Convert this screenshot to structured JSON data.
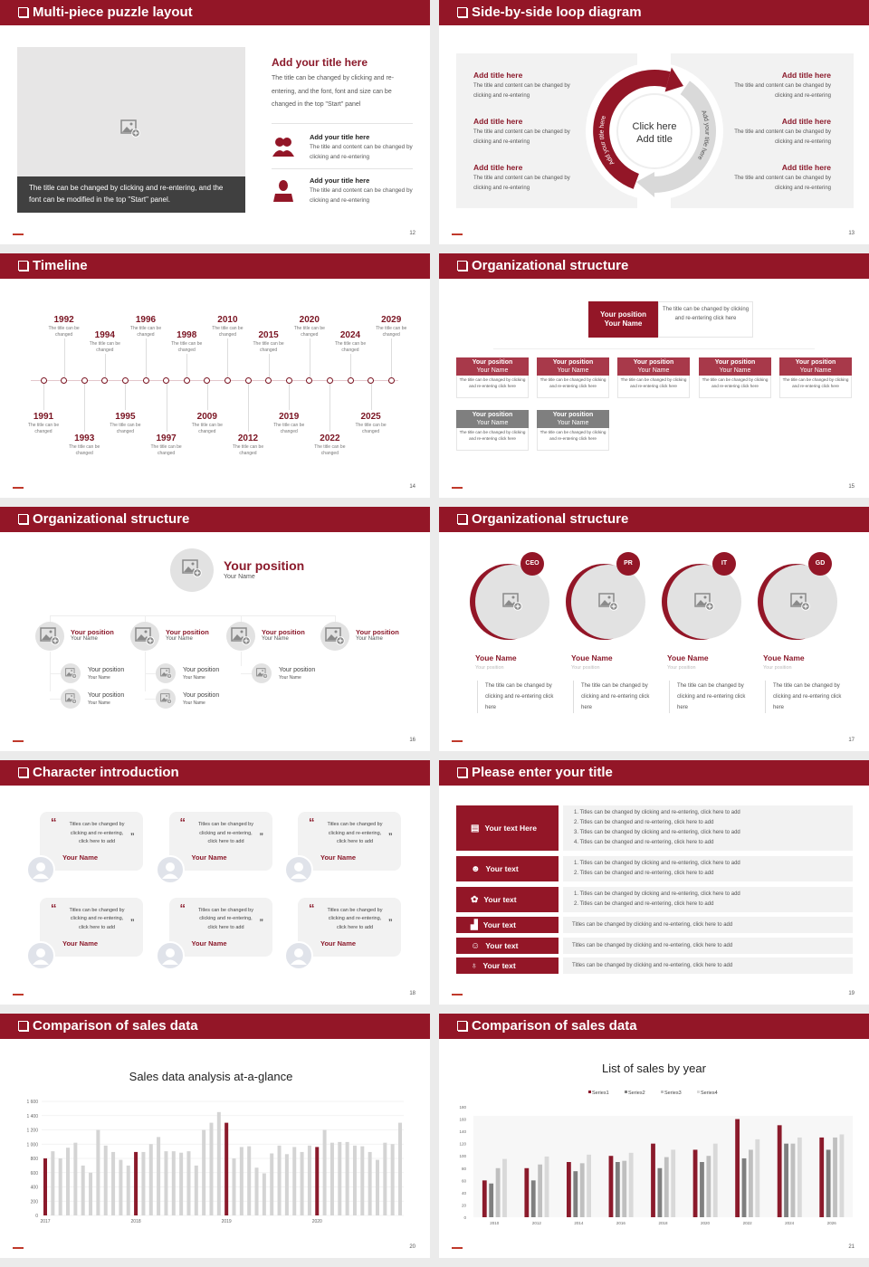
{
  "theme": {
    "accent": "#931627",
    "gray": "#7f7f7f"
  },
  "puzzle": {
    "title": "Multi-piece puzzle layout",
    "page": "12",
    "caption": "The title can be changed by clicking and re-entering, and the font can be modified in the top \"Start\" panel.",
    "main_title": "Add your title here",
    "main_text": "The title can be changed by clicking and re-entering, and the font, font and size can be changed in the top \"Start\" panel",
    "items": [
      {
        "icon": "users-icon",
        "title": "Add your title here",
        "text": "The title and content can be changed by clicking and re-entering"
      },
      {
        "icon": "user-icon",
        "title": "Add your title here",
        "text": "The title and content can be changed by clicking and re-entering"
      }
    ]
  },
  "loop": {
    "title": "Side-by-side loop diagram",
    "page": "13",
    "center_line1": "Click here",
    "center_line2": "Add title",
    "arc_left": "Add your title here",
    "arc_right": "Add your title here",
    "left": [
      {
        "title": "Add title here",
        "text": "The title and content can be changed by clicking and re-entering"
      },
      {
        "title": "Add title here",
        "text": "The title and content can be changed by clicking and re-entering"
      },
      {
        "title": "Add title here",
        "text": "The title and content can be changed by clicking and re-entering"
      }
    ],
    "right": [
      {
        "title": "Add title here",
        "text": "The title and content can be changed by clicking and re-entering"
      },
      {
        "title": "Add title here",
        "text": "The title and content can be changed by clicking and re-entering"
      },
      {
        "title": "Add title here",
        "text": "The title and content can be changed by clicking and re-entering"
      }
    ]
  },
  "timeline": {
    "title": "Timeline",
    "page": "14",
    "item_text": "The title can be changed",
    "events": [
      {
        "year": "1991",
        "pos": "bottom-near"
      },
      {
        "year": "1992",
        "pos": "top-high"
      },
      {
        "year": "1993",
        "pos": "bottom-far"
      },
      {
        "year": "1994",
        "pos": "top-low"
      },
      {
        "year": "1995",
        "pos": "bottom-near"
      },
      {
        "year": "1996",
        "pos": "top-high"
      },
      {
        "year": "1997",
        "pos": "bottom-far"
      },
      {
        "year": "1998",
        "pos": "top-low"
      },
      {
        "year": "2009",
        "pos": "bottom-near"
      },
      {
        "year": "2010",
        "pos": "top-high"
      },
      {
        "year": "2012",
        "pos": "bottom-far"
      },
      {
        "year": "2015",
        "pos": "top-low"
      },
      {
        "year": "2019",
        "pos": "bottom-near"
      },
      {
        "year": "2020",
        "pos": "top-high"
      },
      {
        "year": "2022",
        "pos": "bottom-far"
      },
      {
        "year": "2024",
        "pos": "top-low"
      },
      {
        "year": "2025",
        "pos": "bottom-near"
      },
      {
        "year": "2029",
        "pos": "top-high"
      }
    ]
  },
  "org1": {
    "title": "Organizational structure",
    "page": "15",
    "top": {
      "position": "Your position",
      "name": "Your Name",
      "text": "The title can be changed by clicking and re-entering click here"
    },
    "row1": [
      {
        "position": "Your position",
        "name": "Your Name",
        "text": "The title can be changed by clicking and re-entering click here"
      },
      {
        "position": "Your position",
        "name": "Your Name",
        "text": "The title can be changed by clicking and re-entering click here"
      },
      {
        "position": "Your position",
        "name": "Your Name",
        "text": "The title can be changed by clicking and re-entering click here"
      },
      {
        "position": "Your position",
        "name": "Your Name",
        "text": "The title can be changed by clicking and re-entering click here"
      },
      {
        "position": "Your position",
        "name": "Your Name",
        "text": "The title can be changed by clicking and re-entering click here"
      }
    ],
    "row2": [
      {
        "position": "Your position",
        "name": "Your Name",
        "text": "The title can be changed by clicking and re-entering click here"
      },
      {
        "position": "Your position",
        "name": "Your Name",
        "text": "The title can be changed by clicking and re-entering click here"
      }
    ]
  },
  "org2": {
    "title": "Organizational structure",
    "page": "16",
    "top": {
      "position": "Your position",
      "name": "Your Name"
    },
    "level2": [
      {
        "position": "Your position",
        "name": "Your Name",
        "children": [
          {
            "position": "Your position",
            "name": "Your Name"
          },
          {
            "position": "Your position",
            "name": "Your Name"
          }
        ]
      },
      {
        "position": "Your position",
        "name": "Your Name",
        "children": [
          {
            "position": "Your position",
            "name": "Your Name"
          },
          {
            "position": "Your position",
            "name": "Your Name"
          }
        ]
      },
      {
        "position": "Your position",
        "name": "Your Name",
        "children": [
          {
            "position": "Your position",
            "name": "Your Name"
          }
        ]
      },
      {
        "position": "Your position",
        "name": "Your Name",
        "children": []
      }
    ]
  },
  "org3": {
    "title": "Organizational structure",
    "page": "17",
    "members": [
      {
        "badge": "CEO",
        "name": "Youe Name",
        "position": "Your position",
        "text": "The title can be changed by clicking and re-entering click here"
      },
      {
        "badge": "PR",
        "name": "Youe Name",
        "position": "Your position",
        "text": "The title can be changed by clicking and re-entering click here"
      },
      {
        "badge": "IT",
        "name": "Youe Name",
        "position": "Your position",
        "text": "The title can be changed by clicking and re-entering click here"
      },
      {
        "badge": "GD",
        "name": "Youe Name",
        "position": "Your position",
        "text": "The title can be changed by clicking and re-entering click here"
      }
    ]
  },
  "characters": {
    "title": "Character introduction",
    "page": "18",
    "cards": [
      {
        "quote": "Titles can be changed by clicking and re-entering, click here to add",
        "name": "Your Name"
      },
      {
        "quote": "Titles can be changed by clicking and re-entering, click here to add",
        "name": "Your Name"
      },
      {
        "quote": "Titles can be changed by clicking and re-entering, click here to add",
        "name": "Your Name"
      },
      {
        "quote": "Titles can be changed by clicking and re-entering, click here to add",
        "name": "Your Name"
      },
      {
        "quote": "Titles can be changed by clicking and re-entering, click here to add",
        "name": "Your Name"
      },
      {
        "quote": "Titles can be changed by clicking and re-entering, click here to add",
        "name": "Your Name"
      }
    ]
  },
  "table": {
    "title": "Please enter your title",
    "page": "19",
    "rows": [
      {
        "icon": "presentation-icon",
        "glyph": "▤",
        "label": "Your text Here",
        "lines": [
          "1.   Titles can be changed by clicking and re-entering, click here to add",
          "2.   Titles can be changed and re-entering, click here to add",
          "3.   Titles can be changed by clicking and re-entering, click here to add",
          "4.   Titles can be changed and re-entering, click here to add"
        ]
      },
      {
        "icon": "user-card-icon",
        "glyph": "☻",
        "label": "Your text",
        "lines": [
          "1.   Titles can be changed by clicking and re-entering, click here to add",
          "2.   Titles can be changed and re-entering, click here to add"
        ]
      },
      {
        "icon": "gear-icon",
        "glyph": "✿",
        "label": "Your text",
        "lines": [
          "1.   Titles can be changed by clicking and re-entering, click here to add",
          "2.   Titles can be changed and re-entering, click here to add"
        ]
      },
      {
        "icon": "bar-chart-icon",
        "glyph": "▟",
        "label": "Your text",
        "lines": [
          "Titles can be changed by clicking and re-entering, click here to add"
        ]
      },
      {
        "icon": "team-icon",
        "glyph": "☺",
        "label": "Your text",
        "lines": [
          "Titles can be changed by clicking and re-entering, click here to add"
        ]
      },
      {
        "icon": "money-hand-icon",
        "glyph": "♁",
        "label": "Your text",
        "lines": [
          "Titles can be changed by clicking and re-entering, click here to add"
        ]
      }
    ]
  },
  "sales1": {
    "title": "Comparison of sales data",
    "page": "20"
  },
  "sales2": {
    "title": "Comparison of sales data",
    "page": "21"
  },
  "chart_data": [
    {
      "type": "bar",
      "title": "Sales data analysis at-a-glance",
      "ylim": [
        0,
        1600
      ],
      "yticks": [
        "0",
        "200",
        "400",
        "600",
        "800",
        "1 000",
        "1 200",
        "1 400",
        "1 600"
      ],
      "xtick_labels": [
        "2017",
        "2018",
        "2019",
        "2020"
      ],
      "grid": true,
      "highlight_color": "#8b1a2b",
      "bar_color": "#d4d4d4",
      "highlight_every": 12,
      "values": [
        800,
        900,
        800,
        950,
        1020,
        700,
        600,
        1200,
        980,
        890,
        780,
        700,
        890,
        890,
        1000,
        1100,
        900,
        900,
        880,
        900,
        700,
        1200,
        1300,
        1450,
        1300,
        800,
        960,
        970,
        670,
        590,
        870,
        980,
        860,
        960,
        890,
        980,
        960,
        1200,
        1020,
        1030,
        1030,
        980,
        970,
        890,
        780,
        1020,
        1000,
        1300
      ]
    },
    {
      "type": "bar",
      "title": "List of sales by year",
      "ylim": [
        0,
        180
      ],
      "yticks": [
        "0",
        "20",
        "40",
        "60",
        "80",
        "100",
        "120",
        "140",
        "160",
        "180"
      ],
      "categories": [
        "2010",
        "2012",
        "2014",
        "2016",
        "2018",
        "2020",
        "2022",
        "2024",
        "2026"
      ],
      "legend": "top",
      "series": [
        {
          "name": "Series1",
          "color": "#8b1a2b",
          "values": [
            60,
            80,
            90,
            100,
            120,
            110,
            160,
            150,
            130
          ]
        },
        {
          "name": "Series2",
          "color": "#7f7f7f",
          "values": [
            55,
            60,
            75,
            90,
            80,
            90,
            96,
            120,
            110
          ]
        },
        {
          "name": "Series3",
          "color": "#bfbfbf",
          "values": [
            80,
            86,
            88,
            92,
            98,
            100,
            110,
            120,
            130
          ]
        },
        {
          "name": "Series4",
          "color": "#d9d9d9",
          "values": [
            95,
            99,
            102,
            105,
            110,
            120,
            127,
            130,
            135
          ]
        }
      ]
    }
  ]
}
